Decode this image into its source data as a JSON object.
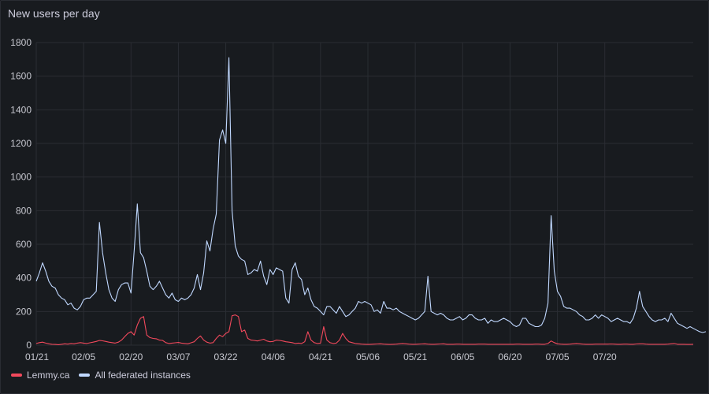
{
  "panel": {
    "title": "New users per day"
  },
  "colors": {
    "background": "#181b1f",
    "grid": "#2a2d33",
    "text": "#c7c8d0"
  },
  "chart_data": {
    "type": "line",
    "title": "New users per day",
    "grid": true,
    "legend_position": "bottom-left",
    "ylim": [
      0,
      1800
    ],
    "yticks": [
      0,
      200,
      400,
      600,
      800,
      1000,
      1200,
      1400,
      1600,
      1800
    ],
    "x_ticks": [
      "01/21",
      "02/05",
      "02/20",
      "03/07",
      "03/22",
      "04/06",
      "04/21",
      "05/06",
      "05/21",
      "06/05",
      "06/20",
      "07/05",
      "07/20"
    ],
    "x_start": "2023-01-21",
    "series": [
      {
        "name": "Lemmy.ca",
        "color": "#f2495c",
        "values": [
          10,
          15,
          18,
          12,
          8,
          5,
          4,
          3,
          5,
          8,
          6,
          10,
          8,
          12,
          15,
          12,
          10,
          14,
          18,
          22,
          28,
          26,
          22,
          18,
          15,
          12,
          18,
          30,
          50,
          70,
          80,
          60,
          120,
          160,
          170,
          60,
          45,
          40,
          38,
          30,
          28,
          15,
          10,
          12,
          14,
          16,
          12,
          10,
          8,
          14,
          20,
          40,
          55,
          30,
          18,
          12,
          15,
          40,
          60,
          50,
          70,
          80,
          175,
          180,
          170,
          80,
          90,
          40,
          30,
          28,
          25,
          30,
          35,
          25,
          20,
          22,
          30,
          28,
          25,
          20,
          18,
          15,
          10,
          12,
          10,
          20,
          80,
          30,
          15,
          10,
          12,
          110,
          30,
          15,
          10,
          12,
          30,
          70,
          40,
          20,
          15,
          10,
          8,
          6,
          5,
          4,
          5,
          6,
          7,
          8,
          6,
          5,
          4,
          5,
          6,
          8,
          10,
          8,
          6,
          5,
          5,
          6,
          7,
          8,
          6,
          5,
          5,
          6,
          7,
          8,
          5,
          5,
          5,
          6,
          6,
          5,
          5,
          5,
          5,
          5,
          6,
          6,
          6,
          5,
          5,
          5,
          5,
          5,
          5,
          5,
          5,
          5,
          6,
          6,
          5,
          5,
          5,
          5,
          6,
          6,
          5,
          5,
          10,
          25,
          15,
          8,
          6,
          5,
          5,
          6,
          8,
          10,
          8,
          6,
          5,
          5,
          5,
          6,
          6,
          6,
          6,
          6,
          7,
          6,
          5,
          5,
          6,
          6,
          5,
          5,
          7,
          8,
          8,
          6,
          5,
          5,
          5,
          5,
          5,
          5,
          6,
          8,
          10,
          5,
          5,
          5,
          4,
          4,
          5
        ]
      },
      {
        "name": "All federated instances",
        "color": "#c0d8ff",
        "values": [
          380,
          430,
          490,
          440,
          380,
          350,
          340,
          300,
          280,
          270,
          240,
          250,
          220,
          210,
          230,
          270,
          280,
          280,
          300,
          320,
          730,
          550,
          430,
          330,
          280,
          260,
          330,
          360,
          370,
          370,
          310,
          560,
          840,
          550,
          520,
          440,
          350,
          330,
          350,
          380,
          340,
          300,
          280,
          310,
          270,
          260,
          280,
          270,
          280,
          300,
          340,
          420,
          330,
          430,
          620,
          560,
          690,
          780,
          1220,
          1280,
          1200,
          1710,
          800,
          590,
          530,
          510,
          500,
          420,
          430,
          450,
          440,
          500,
          410,
          360,
          450,
          420,
          460,
          450,
          440,
          280,
          250,
          450,
          490,
          410,
          390,
          300,
          340,
          270,
          230,
          220,
          200,
          180,
          230,
          230,
          210,
          190,
          230,
          200,
          170,
          180,
          200,
          220,
          260,
          250,
          260,
          250,
          240,
          200,
          210,
          190,
          260,
          220,
          220,
          210,
          220,
          200,
          190,
          180,
          170,
          160,
          150,
          160,
          180,
          200,
          410,
          200,
          190,
          180,
          190,
          180,
          160,
          150,
          150,
          160,
          170,
          150,
          160,
          180,
          180,
          160,
          150,
          150,
          160,
          130,
          150,
          140,
          140,
          150,
          160,
          150,
          140,
          120,
          110,
          120,
          160,
          160,
          130,
          120,
          110,
          110,
          120,
          160,
          250,
          770,
          440,
          320,
          290,
          230,
          220,
          220,
          210,
          200,
          180,
          170,
          150,
          150,
          160,
          180,
          160,
          180,
          170,
          160,
          140,
          150,
          160,
          150,
          140,
          140,
          130,
          160,
          220,
          320,
          230,
          200,
          170,
          150,
          140,
          150,
          150,
          160,
          140,
          190,
          160,
          130,
          120,
          110,
          100,
          110,
          100,
          90,
          80,
          75,
          80
        ]
      }
    ]
  }
}
